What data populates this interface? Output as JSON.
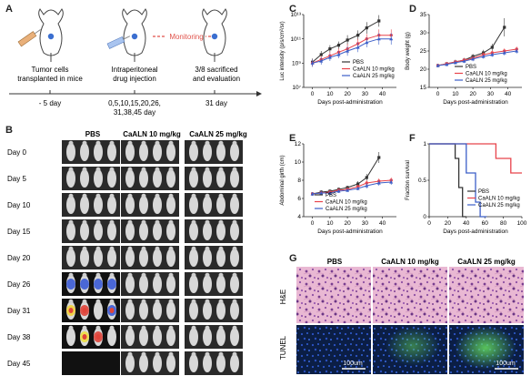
{
  "panels": {
    "a": {
      "letter": "A",
      "steps": [
        {
          "caption_lines": [
            "Tumor cells",
            "transplanted in mice"
          ],
          "time": "- 5 day"
        },
        {
          "caption_lines": [
            "Intraperitoneal",
            "drug injection"
          ],
          "time_lines": [
            "0,5,10,15,20,26,",
            "31,38,45 day"
          ]
        },
        {
          "caption_lines": [
            "3/8 sacrificed",
            "and evaluation"
          ],
          "time": "31 day"
        }
      ],
      "monitoring": "Monitoring"
    },
    "b": {
      "letter": "B",
      "groups": [
        "PBS",
        "CaALN 10 mg/kg",
        "CaALN 25 mg/kg"
      ],
      "days": [
        "Day 0",
        "Day 5",
        "Day 10",
        "Day 15",
        "Day 20",
        "Day 26",
        "Day 31",
        "Day 38",
        "Day 45"
      ]
    },
    "c": {
      "letter": "C"
    },
    "d": {
      "letter": "D"
    },
    "e": {
      "letter": "E"
    },
    "f": {
      "letter": "F"
    },
    "g": {
      "letter": "G",
      "columns": [
        "PBS",
        "CaALN 10 mg/kg",
        "CaALN 25 mg/kg"
      ],
      "rows": [
        "H&E",
        "TUNEL"
      ],
      "scale_bar": "100um"
    }
  },
  "colors": {
    "pbs": "#333333",
    "caaln10": "#e8434b",
    "caaln25": "#3c5fc8",
    "monitoring": "#e0524a"
  },
  "chart_data": [
    {
      "id": "C",
      "type": "line",
      "ylabel": "Luc intensity (p/s/cm²/sr)",
      "xlabel": "Days post-administration",
      "yscale": "log",
      "ylim": [
        10000000.0,
        10000000000000.0
      ],
      "yticks": [
        "10⁷",
        "10⁹",
        "10¹¹",
        "10¹³"
      ],
      "xlim": [
        -5,
        48
      ],
      "xticks": [
        0,
        10,
        20,
        30,
        40
      ],
      "legend": "bottom-right",
      "series": [
        {
          "name": "PBS",
          "x": [
            0,
            5,
            10,
            15,
            20,
            26,
            31,
            38
          ],
          "y": [
            1200000000.0,
            5000000000.0,
            15000000000.0,
            30000000000.0,
            80000000000.0,
            200000000000.0,
            800000000000.0,
            3000000000000.0
          ],
          "err": [
            2,
            2,
            2,
            2,
            2.5,
            2.5,
            3,
            3
          ]
        },
        {
          "name": "CaALN 10 mg/kg",
          "x": [
            0,
            5,
            10,
            15,
            20,
            26,
            31,
            38,
            45
          ],
          "y": [
            1000000000.0,
            2000000000.0,
            4000000000.0,
            8000000000.0,
            15000000000.0,
            40000000000.0,
            100000000000.0,
            200000000000.0,
            200000000000.0
          ],
          "err": [
            2,
            2,
            2,
            2,
            2.5,
            2.5,
            2.5,
            3,
            3
          ]
        },
        {
          "name": "CaALN 25 mg/kg",
          "x": [
            0,
            5,
            10,
            15,
            20,
            26,
            31,
            38,
            45
          ],
          "y": [
            1000000000.0,
            1500000000.0,
            3000000000.0,
            5000000000.0,
            10000000000.0,
            20000000000.0,
            50000000000.0,
            100000000000.0,
            100000000000.0
          ],
          "err": [
            2,
            2,
            2,
            2,
            2.5,
            2.5,
            2.5,
            3,
            3
          ]
        }
      ]
    },
    {
      "id": "D",
      "type": "line",
      "ylabel": "Body weight (g)",
      "xlabel": "Days post-administration",
      "ylim": [
        15,
        35
      ],
      "yticks": [
        15,
        20,
        25,
        30,
        35
      ],
      "xlim": [
        -5,
        48
      ],
      "xticks": [
        0,
        10,
        20,
        30,
        40
      ],
      "legend": "bottom-right",
      "series": [
        {
          "name": "PBS",
          "x": [
            0,
            5,
            10,
            15,
            20,
            26,
            31,
            38
          ],
          "y": [
            21,
            21.5,
            22,
            22.5,
            23.5,
            24.5,
            26,
            31.5
          ],
          "err": [
            0.5,
            0.5,
            0.6,
            0.6,
            0.7,
            0.8,
            1,
            2.5
          ]
        },
        {
          "name": "CaALN 10 mg/kg",
          "x": [
            0,
            5,
            10,
            15,
            20,
            26,
            31,
            38,
            45
          ],
          "y": [
            21,
            21.5,
            22,
            22.5,
            23,
            24,
            24.5,
            25,
            25.5
          ],
          "err": [
            0.5,
            0.5,
            0.5,
            0.5,
            0.6,
            0.6,
            0.6,
            0.7,
            0.7
          ]
        },
        {
          "name": "CaALN 25 mg/kg",
          "x": [
            0,
            5,
            10,
            15,
            20,
            26,
            31,
            38,
            45
          ],
          "y": [
            21,
            21.3,
            21.8,
            22.2,
            22.8,
            23.5,
            24,
            24.5,
            25
          ],
          "err": [
            0.5,
            0.5,
            0.5,
            0.5,
            0.6,
            0.6,
            0.6,
            0.7,
            0.7
          ]
        }
      ]
    },
    {
      "id": "E",
      "type": "line",
      "ylabel": "Abdominal girth (cm)",
      "xlabel": "Days post-administration",
      "ylim": [
        4,
        12
      ],
      "yticks": [
        4,
        6,
        8,
        10,
        12
      ],
      "xlim": [
        -5,
        48
      ],
      "xticks": [
        0,
        10,
        20,
        30,
        40
      ],
      "legend": "bottom-left",
      "series": [
        {
          "name": "PBS",
          "x": [
            0,
            5,
            10,
            15,
            20,
            26,
            31,
            38
          ],
          "y": [
            6.5,
            6.7,
            6.8,
            7.0,
            7.2,
            7.6,
            8.3,
            10.5
          ],
          "err": [
            0.2,
            0.2,
            0.2,
            0.2,
            0.2,
            0.3,
            0.4,
            0.6
          ]
        },
        {
          "name": "CaALN 10 mg/kg",
          "x": [
            0,
            5,
            10,
            15,
            20,
            26,
            31,
            38,
            45
          ],
          "y": [
            6.5,
            6.6,
            6.7,
            6.9,
            7.0,
            7.3,
            7.7,
            7.9,
            8.0
          ],
          "err": [
            0.2,
            0.2,
            0.2,
            0.2,
            0.2,
            0.2,
            0.3,
            0.3,
            0.3
          ]
        },
        {
          "name": "CaALN 25 mg/kg",
          "x": [
            0,
            5,
            10,
            15,
            20,
            26,
            31,
            38,
            45
          ],
          "y": [
            6.5,
            6.6,
            6.6,
            6.8,
            6.9,
            7.1,
            7.4,
            7.7,
            7.8
          ],
          "err": [
            0.2,
            0.2,
            0.2,
            0.2,
            0.2,
            0.2,
            0.3,
            0.3,
            0.3
          ]
        }
      ]
    },
    {
      "id": "F",
      "type": "line",
      "ylabel": "Fraction survival",
      "xlabel": "Days post-administration",
      "ylim": [
        0,
        1.0
      ],
      "yticks": [
        0,
        0.5,
        1.0
      ],
      "xlim": [
        0,
        100
      ],
      "xticks": [
        0,
        20,
        40,
        60,
        80,
        100
      ],
      "legend": "bottom-right",
      "series": [
        {
          "name": "PBS",
          "x": [
            0,
            28,
            28,
            32,
            32,
            36,
            36,
            40
          ],
          "y": [
            1.0,
            1.0,
            0.8,
            0.8,
            0.4,
            0.4,
            0,
            0
          ]
        },
        {
          "name": "CaALN 10 mg/kg",
          "x": [
            0,
            72,
            72,
            88,
            88,
            100
          ],
          "y": [
            1.0,
            1.0,
            0.8,
            0.8,
            0.6,
            0.6
          ]
        },
        {
          "name": "CaALN 25 mg/kg",
          "x": [
            0,
            40,
            40,
            50,
            50,
            55,
            55,
            62
          ],
          "y": [
            1.0,
            1.0,
            0.6,
            0.6,
            0.2,
            0.2,
            0,
            0
          ]
        }
      ]
    }
  ]
}
